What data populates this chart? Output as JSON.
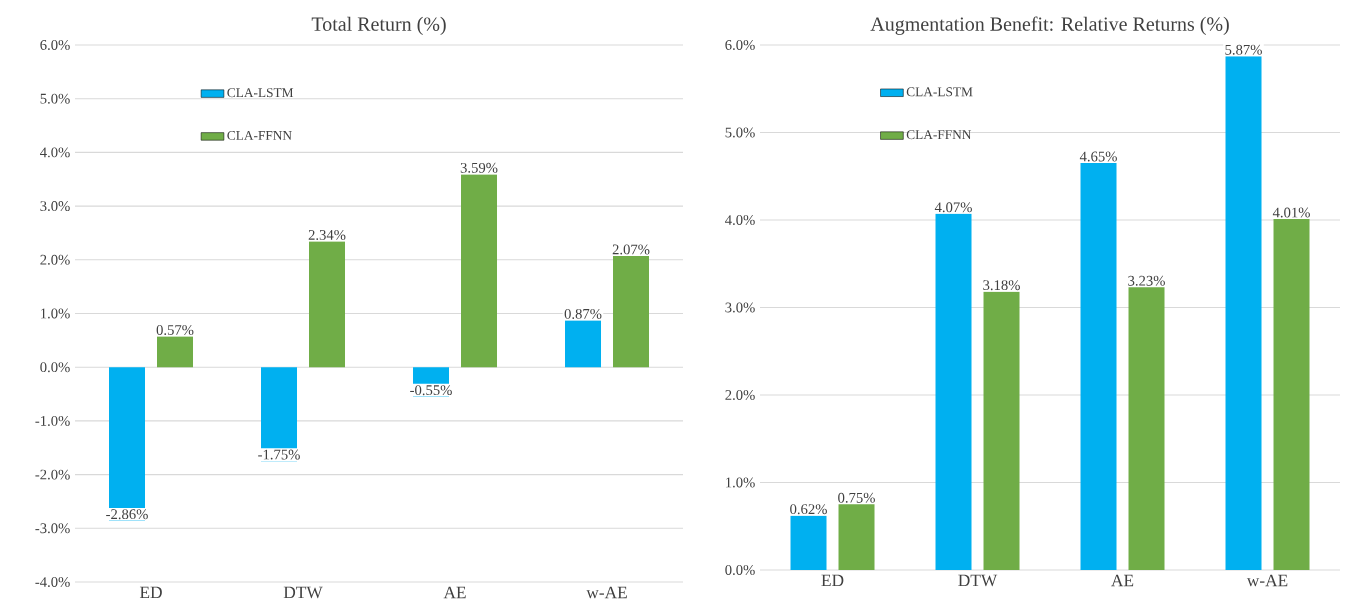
{
  "chart_data": [
    {
      "type": "bar",
      "title": "Total Return (%)",
      "categories": [
        "ED",
        "DTW",
        "AE",
        "w-AE"
      ],
      "series": [
        {
          "name": "CLA-LSTM",
          "color": "#00b0f0",
          "values": [
            -2.86,
            -1.75,
            -0.55,
            0.87
          ],
          "value_labels": [
            "-2.86%",
            "-1.75%",
            "-0.55%",
            "0.87%"
          ]
        },
        {
          "name": "CLA-FFNN",
          "color": "#70ad47",
          "values": [
            0.57,
            2.34,
            3.59,
            2.07
          ],
          "value_labels": [
            "0.57%",
            "2.34%",
            "3.59%",
            "2.07%"
          ]
        }
      ],
      "ylim": [
        -4,
        6
      ],
      "yticks": [
        {
          "value": -4,
          "label": "-4.0%"
        },
        {
          "value": -3,
          "label": "-3.0%"
        },
        {
          "value": -2,
          "label": "-2.0%"
        },
        {
          "value": -1,
          "label": "-1.0%"
        },
        {
          "value": 0,
          "label": "0.0%"
        },
        {
          "value": 1,
          "label": "1.0%"
        },
        {
          "value": 2,
          "label": "2.0%"
        },
        {
          "value": 3,
          "label": "3.0%"
        },
        {
          "value": 4,
          "label": "4.0%"
        },
        {
          "value": 5,
          "label": "5.0%"
        },
        {
          "value": 6,
          "label": "6.0%"
        }
      ],
      "grid": "y",
      "legend": "top left"
    },
    {
      "type": "bar",
      "title": "Augmentation Benefit: Relative Returns (%)",
      "categories": [
        "ED",
        "DTW",
        "AE",
        "w-AE"
      ],
      "series": [
        {
          "name": "CLA-LSTM",
          "color": "#00b0f0",
          "values": [
            0.62,
            4.07,
            4.65,
            5.87
          ],
          "value_labels": [
            "0.62%",
            "4.07%",
            "4.65%",
            "5.87%"
          ]
        },
        {
          "name": "CLA-FFNN",
          "color": "#70ad47",
          "values": [
            0.75,
            3.18,
            3.23,
            4.01
          ],
          "value_labels": [
            "0.75%",
            "3.18%",
            "3.23%",
            "4.01%"
          ]
        }
      ],
      "ylim": [
        0,
        6
      ],
      "yticks": [
        {
          "value": 0,
          "label": "0.0%"
        },
        {
          "value": 1,
          "label": "1.0%"
        },
        {
          "value": 2,
          "label": "2.0%"
        },
        {
          "value": 3,
          "label": "3.0%"
        },
        {
          "value": 4,
          "label": "4.0%"
        },
        {
          "value": 5,
          "label": "5.0%"
        },
        {
          "value": 6,
          "label": "6.0%"
        }
      ],
      "grid": "y",
      "legend": "top left"
    }
  ]
}
